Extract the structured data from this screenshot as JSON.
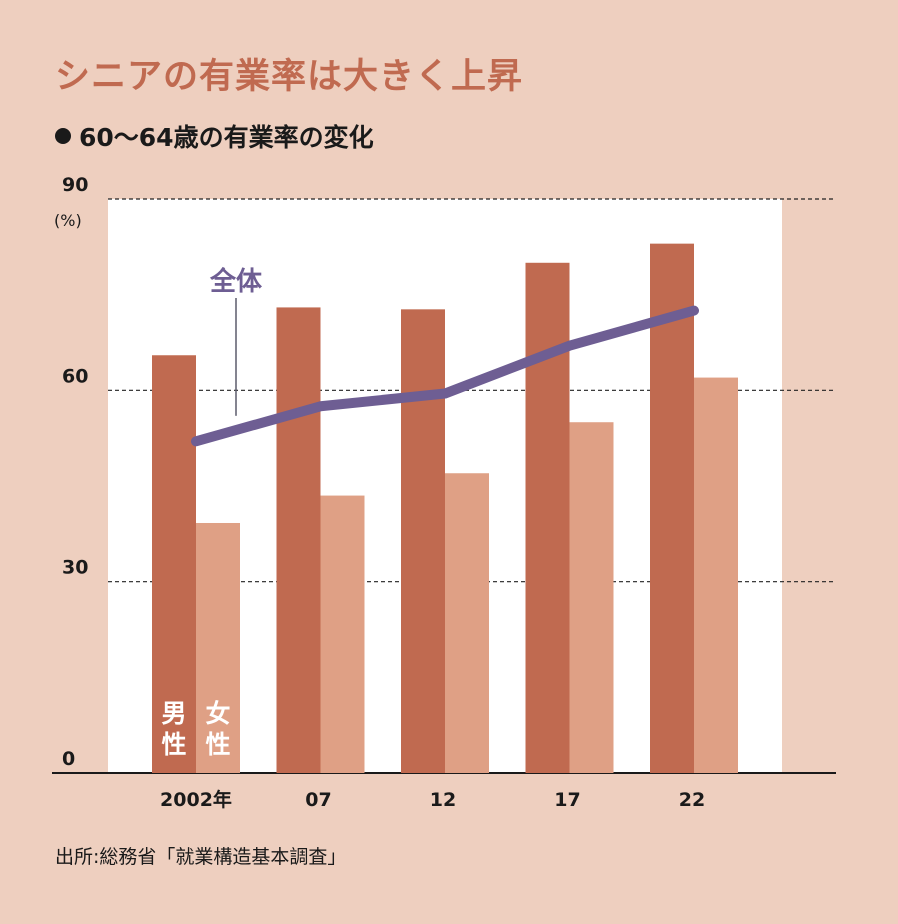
{
  "title": "シニアの有業率は大きく上昇",
  "subtitle": "60〜64歳の有業率の変化",
  "source": "出所:総務省「就業構造基本調査」",
  "colors": {
    "background": "#eecfbf",
    "plot_area": "#ffffff",
    "title": "#c06a50",
    "male": "#c06a50",
    "female": "#dfa085",
    "total": "#6e5e93"
  },
  "chart_data": {
    "type": "bar",
    "title": "60〜64歳の有業率の変化",
    "ylabel": "",
    "y_unit_label": "(%)",
    "ylim": [
      0,
      90
    ],
    "yticks": [
      "0",
      "30",
      "60",
      "90"
    ],
    "grid": true,
    "categories": [
      "2002年",
      "07",
      "12",
      "17",
      "22"
    ],
    "series": [
      {
        "name": "男性",
        "label_lines": [
          "男",
          "性"
        ],
        "type": "bar",
        "values": [
          65.5,
          73,
          72.7,
          80,
          83
        ]
      },
      {
        "name": "女性",
        "label_lines": [
          "女",
          "性"
        ],
        "type": "bar",
        "values": [
          39.2,
          43.5,
          47,
          55,
          62
        ]
      },
      {
        "name": "全体",
        "type": "line",
        "values": [
          52,
          57.5,
          59.5,
          67,
          72.5
        ]
      }
    ]
  }
}
